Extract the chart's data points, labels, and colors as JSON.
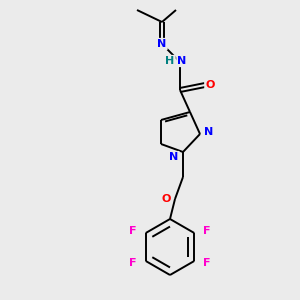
{
  "background_color": "#ebebeb",
  "bond_color": "#000000",
  "atom_colors": {
    "N": "#0000ff",
    "O": "#ff0000",
    "F": "#ff00cc",
    "H": "#008080",
    "C": "#000000"
  },
  "figsize": [
    3.0,
    3.0
  ],
  "dpi": 100
}
